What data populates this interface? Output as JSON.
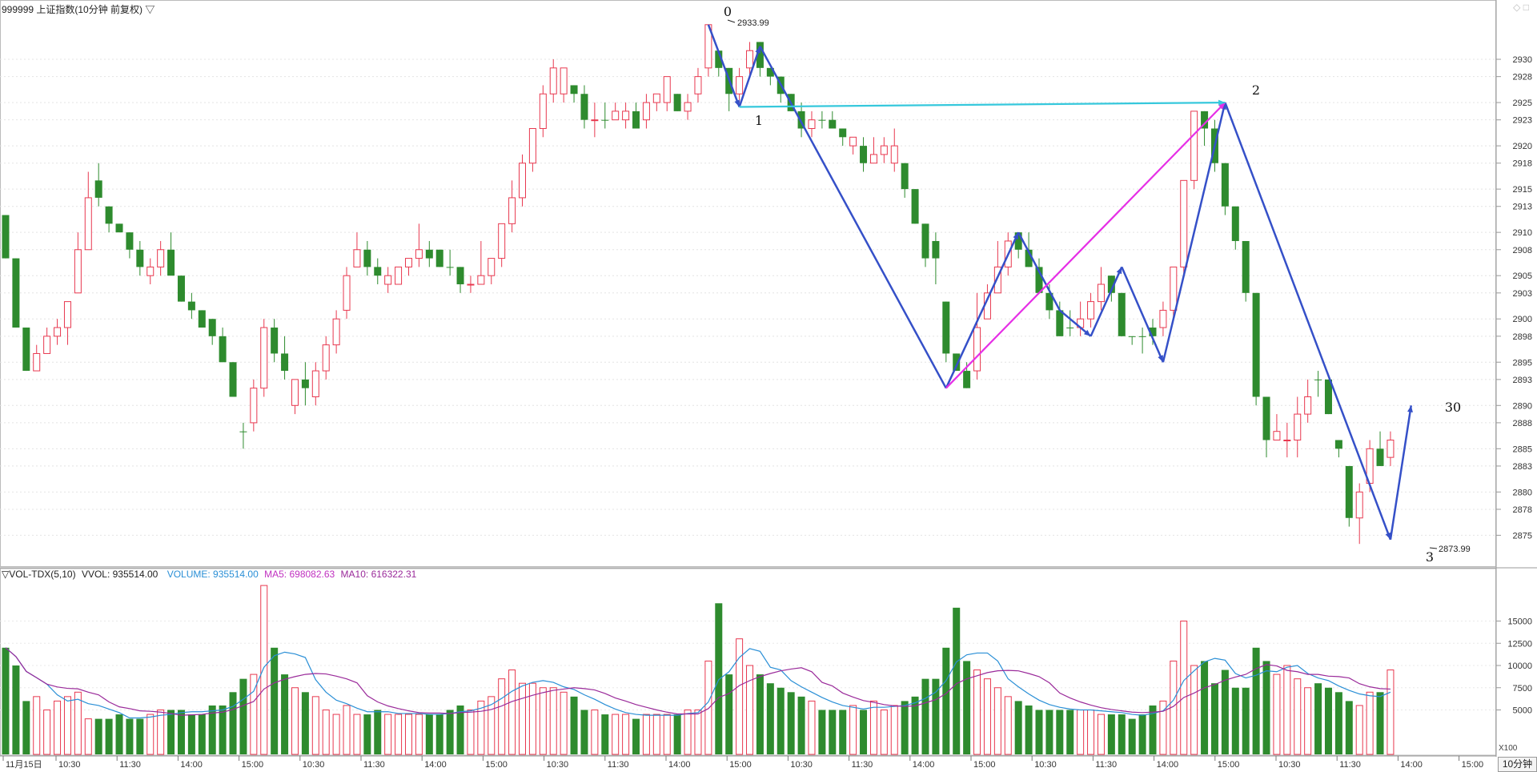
{
  "title": "999999 上证指数(10分钟 前复权) ▽",
  "window_icons": [
    "◇",
    "□"
  ],
  "vol_header": {
    "indicator": "▽VOL-TDX(5,10)",
    "vvol": "VVOL: 935514.00",
    "volume": "VOLUME: 935514.00",
    "ma5": "MA5: 698082.63",
    "ma10": "MA10: 616322.31"
  },
  "price_ticks": [
    "2930",
    "2928",
    "2925",
    "2923",
    "2920",
    "2918",
    "2915",
    "2913",
    "2910",
    "2908",
    "2905",
    "2903",
    "2900",
    "2898",
    "2895",
    "2893",
    "2890",
    "2888",
    "2885",
    "2883",
    "2880",
    "2878",
    "2875"
  ],
  "vol_ticks": [
    "15000",
    "12500",
    "10000",
    "7500",
    "5000"
  ],
  "vol_unit": "X100",
  "period_label": "10分钟",
  "time_labels": [
    "11月15日",
    "10:30",
    "11:30",
    "14:00",
    "15:00",
    "10:30",
    "11:30",
    "14:00",
    "15:00",
    "10:30",
    "11:30",
    "14:00",
    "15:00",
    "10:30",
    "11:30",
    "14:00",
    "15:00",
    "10:30",
    "11:30",
    "14:00",
    "15:00",
    "10:30",
    "11:30",
    "14:00",
    "15:00"
  ],
  "annotations": {
    "high_label": "2933.99",
    "low_label": "2873.99",
    "wave_labels": [
      "0",
      "1",
      "2",
      "3",
      "30"
    ]
  },
  "colors": {
    "up": "#e8384f",
    "down": "#2e8b2e",
    "wave": "#3550c8",
    "magenta": "#e62fe6",
    "cyan": "#36c8dc",
    "ma5": "#2a8fd6",
    "ma10": "#9a2a9a"
  },
  "chart_data": {
    "type": "candlestick",
    "y_range": [
      2873,
      2935
    ],
    "vol_range": [
      0,
      20000
    ],
    "candles": [
      [
        2912,
        2907,
        2912,
        2907,
        12000,
        0
      ],
      [
        2907,
        2899,
        2907,
        2899,
        10000,
        0
      ],
      [
        2899,
        2894,
        2899,
        2894,
        6000,
        0
      ],
      [
        2894,
        2896,
        2897,
        2894,
        6500,
        1
      ],
      [
        2896,
        2898,
        2899,
        2896,
        5000,
        1
      ],
      [
        2898,
        2899,
        2900,
        2897,
        6000,
        1
      ],
      [
        2899,
        2902,
        2902,
        2897,
        6500,
        1
      ],
      [
        2903,
        2908,
        2910,
        2903,
        7000,
        1
      ],
      [
        2908,
        2914,
        2917,
        2908,
        4000,
        1
      ],
      [
        2916,
        2914,
        2918,
        2913,
        4000,
        0
      ],
      [
        2913,
        2911,
        2913,
        2910,
        4000,
        0
      ],
      [
        2911,
        2910,
        2911,
        2910,
        4500,
        0
      ],
      [
        2910,
        2908,
        2910,
        2907,
        4000,
        0
      ],
      [
        2908,
        2906,
        2909,
        2905,
        4000,
        0
      ],
      [
        2905,
        2906,
        2907,
        2904,
        4500,
        1
      ],
      [
        2906,
        2908,
        2909,
        2905,
        5000,
        1
      ],
      [
        2908,
        2905,
        2910,
        2905,
        5000,
        0
      ],
      [
        2905,
        2902,
        2905,
        2902,
        5000,
        0
      ],
      [
        2902,
        2901,
        2903,
        2900,
        4500,
        0
      ],
      [
        2901,
        2899,
        2901,
        2899,
        4500,
        0
      ],
      [
        2900,
        2898,
        2900,
        2897,
        5500,
        0
      ],
      [
        2898,
        2895,
        2899,
        2895,
        5500,
        0
      ],
      [
        2895,
        2891,
        2895,
        2891,
        7000,
        0
      ],
      [
        2887,
        2887,
        2888,
        2885,
        8500,
        0
      ],
      [
        2888,
        2892,
        2893,
        2887,
        9000,
        1
      ],
      [
        2892,
        2899,
        2900,
        2891,
        19000,
        1
      ],
      [
        2899,
        2896,
        2900,
        2895,
        12000,
        0
      ],
      [
        2896,
        2894,
        2898,
        2893,
        9000,
        0
      ],
      [
        2890,
        2893,
        2893,
        2889,
        7500,
        1
      ],
      [
        2893,
        2892,
        2895,
        2890,
        7000,
        0
      ],
      [
        2891,
        2894,
        2895,
        2890,
        6500,
        1
      ],
      [
        2894,
        2897,
        2898,
        2893,
        5000,
        1
      ],
      [
        2897,
        2900,
        2901,
        2896,
        4500,
        1
      ],
      [
        2901,
        2905,
        2906,
        2900,
        5500,
        1
      ],
      [
        2906,
        2908,
        2910,
        2906,
        4500,
        1
      ],
      [
        2908,
        2906,
        2909,
        2905,
        4500,
        0
      ],
      [
        2906,
        2905,
        2907,
        2904,
        5000,
        0
      ],
      [
        2905,
        2904,
        2906,
        2903,
        4500,
        1
      ],
      [
        2904,
        2906,
        2906,
        2904,
        4500,
        1
      ],
      [
        2906,
        2907,
        2907,
        2905,
        4500,
        1
      ],
      [
        2907,
        2908,
        2911,
        2906,
        4500,
        1
      ],
      [
        2907,
        2908,
        2909,
        2906,
        4500,
        0
      ],
      [
        2908,
        2906,
        2908,
        2906,
        4500,
        0
      ],
      [
        2906,
        2906,
        2908,
        2905,
        5000,
        0
      ],
      [
        2906,
        2904,
        2906,
        2903,
        5500,
        0
      ],
      [
        2904,
        2904,
        2905,
        2903,
        5000,
        1
      ],
      [
        2904,
        2905,
        2909,
        2904,
        6000,
        1
      ],
      [
        2905,
        2907,
        2907,
        2904,
        6500,
        1
      ],
      [
        2907,
        2911,
        2911,
        2906,
        8500,
        1
      ],
      [
        2911,
        2914,
        2916,
        2910,
        9500,
        1
      ],
      [
        2914,
        2918,
        2919,
        2913,
        8000,
        1
      ],
      [
        2918,
        2922,
        2922,
        2917,
        8000,
        1
      ],
      [
        2922,
        2926,
        2927,
        2921,
        7500,
        1
      ],
      [
        2926,
        2929,
        2930,
        2925,
        7500,
        1
      ],
      [
        2929,
        2926,
        2929,
        2925,
        7000,
        1
      ],
      [
        2927,
        2926,
        2927,
        2925,
        6500,
        0
      ],
      [
        2926,
        2923,
        2927,
        2922,
        5000,
        0
      ],
      [
        2923,
        2923,
        2925,
        2921,
        5000,
        1
      ],
      [
        2923,
        2923,
        2925,
        2922,
        4500,
        0
      ],
      [
        2923,
        2924,
        2925,
        2923,
        4500,
        1
      ],
      [
        2924,
        2923,
        2925,
        2922,
        4500,
        1
      ],
      [
        2924,
        2922,
        2925,
        2922,
        4000,
        0
      ],
      [
        2923,
        2925,
        2926,
        2922,
        4500,
        1
      ],
      [
        2925,
        2926,
        2926,
        2924,
        4500,
        1
      ],
      [
        2925,
        2928,
        2928,
        2924,
        4500,
        1
      ],
      [
        2926,
        2924,
        2926,
        2924,
        4500,
        0
      ],
      [
        2924,
        2925,
        2926,
        2923,
        5000,
        1
      ],
      [
        2926,
        2928,
        2929,
        2925,
        5000,
        1
      ],
      [
        2929,
        2934,
        2934,
        2928,
        10500,
        1
      ],
      [
        2931,
        2929,
        2931,
        2928,
        17000,
        0
      ],
      [
        2929,
        2926,
        2929,
        2924,
        9000,
        0
      ],
      [
        2926,
        2928,
        2929,
        2925,
        13000,
        1
      ],
      [
        2929,
        2931,
        2932,
        2928,
        10000,
        1
      ],
      [
        2932,
        2929,
        2932,
        2928,
        9000,
        0
      ],
      [
        2929,
        2928,
        2929,
        2927,
        8000,
        0
      ],
      [
        2928,
        2926,
        2928,
        2925,
        7500,
        0
      ],
      [
        2926,
        2924,
        2926,
        2924,
        7000,
        0
      ],
      [
        2924,
        2922,
        2925,
        2921,
        6500,
        0
      ],
      [
        2922,
        2923,
        2924,
        2921,
        6000,
        1
      ],
      [
        2923,
        2923,
        2924,
        2922,
        5000,
        0
      ],
      [
        2923,
        2922,
        2924,
        2922,
        5000,
        0
      ],
      [
        2922,
        2921,
        2922,
        2920,
        5000,
        0
      ],
      [
        2921,
        2920,
        2921,
        2919,
        5500,
        1
      ],
      [
        2920,
        2918,
        2921,
        2917,
        5000,
        0
      ],
      [
        2918,
        2919,
        2921,
        2918,
        6000,
        1
      ],
      [
        2919,
        2920,
        2921,
        2918,
        5000,
        1
      ],
      [
        2920,
        2918,
        2922,
        2917,
        5500,
        1
      ],
      [
        2918,
        2915,
        2918,
        2914,
        6000,
        0
      ],
      [
        2915,
        2911,
        2915,
        2911,
        6500,
        0
      ],
      [
        2911,
        2907,
        2911,
        2906,
        8500,
        0
      ],
      [
        2909,
        2907,
        2910,
        2904,
        8500,
        0
      ],
      [
        2902,
        2896,
        2902,
        2895,
        12000,
        0
      ],
      [
        2896,
        2894,
        2896,
        2894,
        16500,
        0
      ],
      [
        2894,
        2892,
        2895,
        2892,
        10500,
        0
      ],
      [
        2894,
        2899,
        2903,
        2893,
        9500,
        1
      ],
      [
        2900,
        2903,
        2904,
        2900,
        8500,
        1
      ],
      [
        2903,
        2906,
        2909,
        2903,
        7500,
        1
      ],
      [
        2906,
        2909,
        2910,
        2905,
        6500,
        1
      ],
      [
        2910,
        2908,
        2910,
        2907,
        6000,
        0
      ],
      [
        2908,
        2906,
        2910,
        2906,
        5500,
        0
      ],
      [
        2906,
        2903,
        2907,
        2903,
        5000,
        0
      ],
      [
        2903,
        2901,
        2904,
        2900,
        5000,
        0
      ],
      [
        2901,
        2898,
        2902,
        2898,
        5000,
        0
      ],
      [
        2899,
        2899,
        2901,
        2898,
        5000,
        0
      ],
      [
        2899,
        2900,
        2902,
        2898,
        5000,
        1
      ],
      [
        2900,
        2902,
        2903,
        2899,
        5000,
        1
      ],
      [
        2902,
        2904,
        2906,
        2901,
        4500,
        1
      ],
      [
        2905,
        2903,
        2905,
        2902,
        4500,
        0
      ],
      [
        2903,
        2898,
        2903,
        2898,
        4500,
        0
      ],
      [
        2898,
        2898,
        2898,
        2897,
        4000,
        0
      ],
      [
        2898,
        2898,
        2899,
        2896,
        4500,
        0
      ],
      [
        2898,
        2899,
        2900,
        2897,
        5500,
        0
      ],
      [
        2899,
        2901,
        2902,
        2898,
        6000,
        1
      ],
      [
        2901,
        2906,
        2906,
        2900,
        10500,
        1
      ],
      [
        2906,
        2916,
        2916,
        2905,
        15000,
        1
      ],
      [
        2916,
        2924,
        2924,
        2915,
        10000,
        1
      ],
      [
        2924,
        2922,
        2924,
        2920,
        10500,
        0
      ],
      [
        2922,
        2918,
        2923,
        2917,
        8000,
        0
      ],
      [
        2918,
        2913,
        2918,
        2912,
        9500,
        0
      ],
      [
        2913,
        2909,
        2913,
        2908,
        7500,
        0
      ],
      [
        2909,
        2903,
        2909,
        2902,
        7500,
        0
      ],
      [
        2903,
        2891,
        2903,
        2890,
        12000,
        0
      ],
      [
        2891,
        2886,
        2891,
        2884,
        10500,
        0
      ],
      [
        2886,
        2887,
        2889,
        2886,
        9000,
        1
      ],
      [
        2886,
        2886,
        2888,
        2884,
        10000,
        1
      ],
      [
        2886,
        2889,
        2891,
        2884,
        8500,
        1
      ],
      [
        2889,
        2891,
        2893,
        2888,
        7500,
        1
      ],
      [
        2893,
        2893,
        2894,
        2891,
        8000,
        0
      ],
      [
        2893,
        2889,
        2893,
        2889,
        7500,
        0
      ],
      [
        2886,
        2885,
        2886,
        2884,
        7000,
        0
      ],
      [
        2883,
        2877,
        2883,
        2876,
        6000,
        0
      ],
      [
        2877,
        2880,
        2881,
        2874,
        5500,
        1
      ],
      [
        2881,
        2885,
        2886,
        2880,
        7000,
        1
      ],
      [
        2885,
        2883,
        2887,
        2883,
        7000,
        0
      ],
      [
        2884,
        2886,
        2887,
        2883,
        9500,
        1
      ]
    ]
  }
}
